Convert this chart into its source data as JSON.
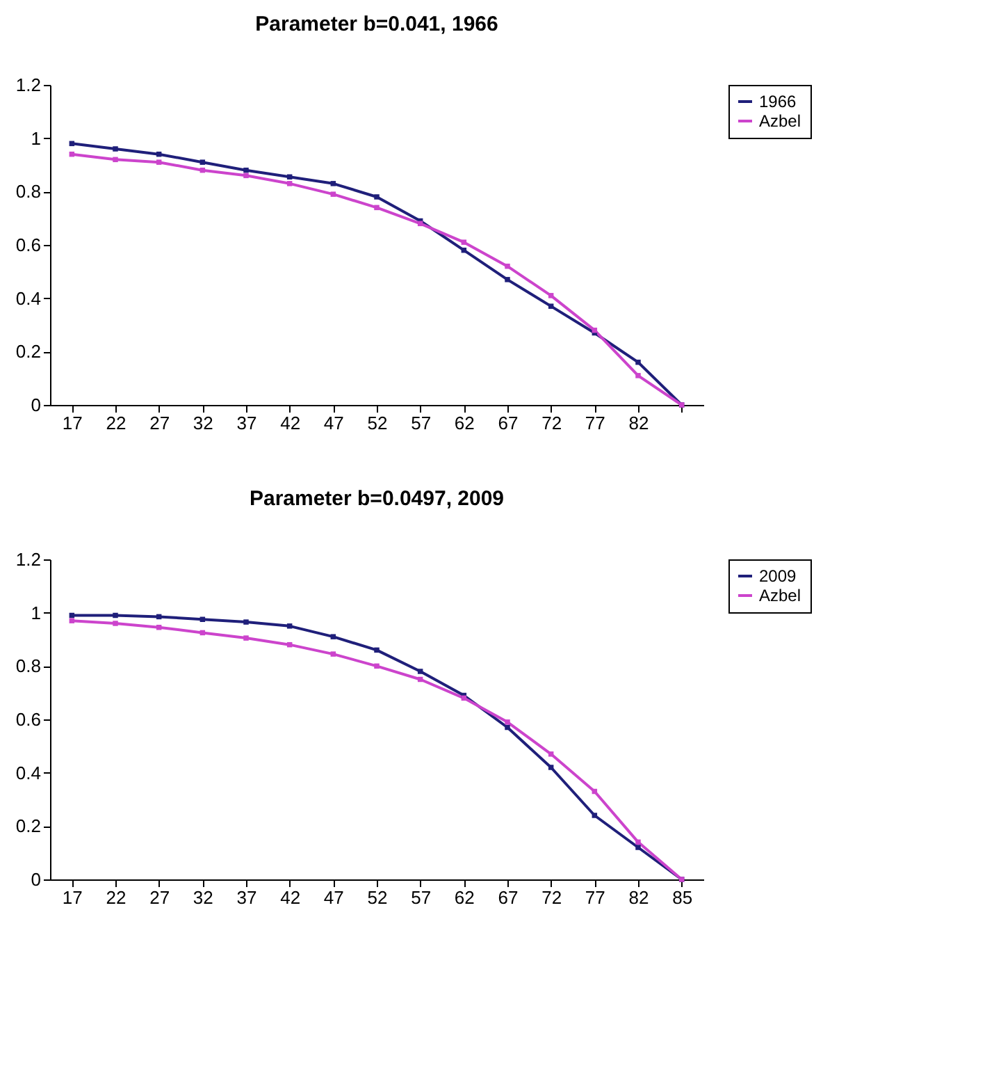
{
  "chart_data": [
    {
      "type": "line",
      "title": "Parameter b=0.041, 1966",
      "categories": [
        "17",
        "22",
        "27",
        "32",
        "37",
        "42",
        "47",
        "52",
        "57",
        "62",
        "67",
        "72",
        "77",
        "82",
        null
      ],
      "ylim": [
        0,
        1.2
      ],
      "yticks": [
        0,
        0.2,
        0.4,
        0.6,
        0.8,
        1,
        1.2
      ],
      "grid": false,
      "legend": "right",
      "marker": "square",
      "line_style": "solid",
      "series": [
        {
          "name": "1966",
          "color": "#1f1f7a",
          "values": [
            0.98,
            0.96,
            0.94,
            0.91,
            0.88,
            0.855,
            0.83,
            0.78,
            0.69,
            0.58,
            0.47,
            0.37,
            0.27,
            0.16,
            0
          ]
        },
        {
          "name": "Azbel",
          "color": "#cc44cc",
          "values": [
            0.94,
            0.92,
            0.91,
            0.88,
            0.86,
            0.83,
            0.79,
            0.74,
            0.68,
            0.61,
            0.52,
            0.41,
            0.28,
            0.11,
            0
          ]
        }
      ]
    },
    {
      "type": "line",
      "title": "Parameter b=0.0497, 2009",
      "categories": [
        "17",
        "22",
        "27",
        "32",
        "37",
        "42",
        "47",
        "52",
        "57",
        "62",
        "67",
        "72",
        "77",
        "82",
        "85"
      ],
      "ylim": [
        0,
        1.2
      ],
      "yticks": [
        0,
        0.2,
        0.4,
        0.6,
        0.8,
        1,
        1.2
      ],
      "grid": false,
      "legend": "right",
      "marker": "square",
      "line_style": "solid",
      "series": [
        {
          "name": "2009",
          "color": "#1f1f7a",
          "values": [
            0.99,
            0.99,
            0.985,
            0.975,
            0.965,
            0.95,
            0.91,
            0.86,
            0.78,
            0.69,
            0.57,
            0.42,
            0.24,
            0.12,
            0
          ]
        },
        {
          "name": "Azbel",
          "color": "#cc44cc",
          "values": [
            0.97,
            0.96,
            0.945,
            0.925,
            0.905,
            0.88,
            0.845,
            0.8,
            0.75,
            0.68,
            0.59,
            0.47,
            0.33,
            0.14,
            0
          ]
        }
      ]
    }
  ]
}
